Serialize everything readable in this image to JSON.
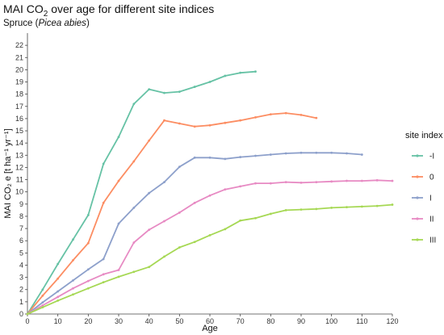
{
  "title": {
    "prefix": "MAI CO",
    "sub": "2",
    "suffix": " over age for different site indices"
  },
  "subtitle": {
    "prefix": "Spruce (",
    "italic": "Picea abies",
    "suffix": ")"
  },
  "chart_data": {
    "type": "line",
    "xlabel": "Age",
    "ylabel": "MAI CO₂ e [t ha⁻¹ yr⁻¹]",
    "xlim": [
      0,
      120
    ],
    "ylim": [
      0,
      23
    ],
    "xticks": [
      0,
      10,
      20,
      30,
      40,
      50,
      60,
      70,
      80,
      90,
      100,
      110,
      120
    ],
    "yticks": [
      0,
      1,
      2,
      3,
      4,
      5,
      6,
      7,
      8,
      9,
      10,
      11,
      12,
      13,
      14,
      15,
      16,
      17,
      18,
      19,
      20,
      21,
      22
    ],
    "grid": false,
    "legend": {
      "title": "site index",
      "placement": "right"
    },
    "series": [
      {
        "name": "-I",
        "color": "#66c2a5",
        "x": [
          0,
          5,
          10,
          15,
          20,
          25,
          30,
          35,
          40,
          45,
          50,
          55,
          60,
          65,
          70,
          75
        ],
        "y": [
          0,
          2.0,
          4.1,
          6.1,
          8.1,
          12.3,
          14.5,
          17.2,
          18.4,
          18.1,
          18.2,
          18.6,
          19.0,
          19.5,
          19.75,
          19.85
        ]
      },
      {
        "name": "0",
        "color": "#fc8d62",
        "x": [
          0,
          5,
          10,
          15,
          20,
          25,
          30,
          35,
          40,
          45,
          50,
          55,
          60,
          65,
          70,
          75,
          80,
          85,
          90,
          95
        ],
        "y": [
          0,
          1.5,
          2.9,
          4.4,
          5.8,
          9.1,
          10.9,
          12.5,
          14.2,
          15.85,
          15.6,
          15.35,
          15.45,
          15.65,
          15.85,
          16.1,
          16.35,
          16.45,
          16.3,
          16.05
        ]
      },
      {
        "name": "I",
        "color": "#8da0cb",
        "x": [
          0,
          5,
          10,
          15,
          20,
          25,
          30,
          35,
          40,
          45,
          50,
          55,
          60,
          65,
          70,
          75,
          80,
          85,
          90,
          95,
          100,
          105,
          110
        ],
        "y": [
          0,
          0.95,
          1.85,
          2.75,
          3.65,
          4.5,
          7.4,
          8.7,
          9.9,
          10.8,
          12.05,
          12.8,
          12.8,
          12.7,
          12.85,
          12.95,
          13.05,
          13.15,
          13.2,
          13.2,
          13.2,
          13.15,
          13.05
        ]
      },
      {
        "name": "II",
        "color": "#e78ac3",
        "x": [
          0,
          5,
          10,
          15,
          20,
          25,
          30,
          35,
          40,
          45,
          50,
          55,
          60,
          65,
          70,
          75,
          80,
          85,
          90,
          95,
          100,
          105,
          110,
          115,
          120
        ],
        "y": [
          0,
          0.7,
          1.4,
          2.1,
          2.7,
          3.25,
          3.6,
          5.85,
          6.9,
          7.6,
          8.3,
          9.1,
          9.7,
          10.2,
          10.45,
          10.7,
          10.7,
          10.8,
          10.75,
          10.8,
          10.85,
          10.9,
          10.9,
          10.95,
          10.9
        ]
      },
      {
        "name": "III",
        "color": "#a6d854",
        "x": [
          0,
          5,
          10,
          15,
          20,
          25,
          30,
          35,
          40,
          45,
          50,
          55,
          60,
          65,
          70,
          75,
          80,
          85,
          90,
          95,
          100,
          105,
          110,
          115,
          120
        ],
        "y": [
          0,
          0.55,
          1.1,
          1.6,
          2.1,
          2.6,
          3.05,
          3.45,
          3.85,
          4.7,
          5.45,
          5.9,
          6.45,
          6.95,
          7.65,
          7.85,
          8.2,
          8.5,
          8.55,
          8.6,
          8.7,
          8.75,
          8.8,
          8.85,
          8.95
        ]
      }
    ]
  }
}
